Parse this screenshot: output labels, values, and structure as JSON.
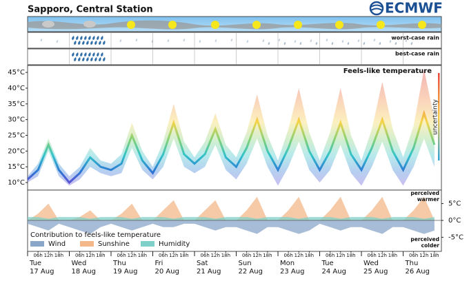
{
  "header": {
    "title": "Sapporo, Central Station",
    "logo": "ECMWF"
  },
  "rain": {
    "worst_label": "worst-case rain",
    "best_label": "best-case rain"
  },
  "chart_data": [
    {
      "type": "band",
      "title": "Feels-like temperature",
      "uncertainty_label": "uncertainty",
      "x": [
        0,
        6,
        12,
        18,
        24,
        30,
        36,
        42,
        48,
        54,
        60,
        66,
        72,
        78,
        84,
        90,
        96,
        102,
        108,
        114,
        120,
        126,
        132,
        138,
        144,
        150,
        156,
        162,
        168,
        174,
        180,
        186,
        192,
        198,
        204,
        210,
        216,
        222,
        228,
        234
      ],
      "xlim": [
        0,
        238
      ],
      "xticks": [
        0,
        24,
        48,
        72,
        96,
        120,
        144,
        168,
        192,
        216
      ],
      "days": [
        {
          "weekday": "Tue",
          "date": "17 Aug"
        },
        {
          "weekday": "Wed",
          "date": "18 Aug"
        },
        {
          "weekday": "Thu",
          "date": "19 Aug"
        },
        {
          "weekday": "Fri",
          "date": "20 Aug"
        },
        {
          "weekday": "Sat",
          "date": "21 Aug"
        },
        {
          "weekday": "Sun",
          "date": "22 Aug"
        },
        {
          "weekday": "Mon",
          "date": "23 Aug"
        },
        {
          "weekday": "Tue",
          "date": "24 Aug"
        },
        {
          "weekday": "Wed",
          "date": "25 Aug"
        },
        {
          "weekday": "Thu",
          "date": "26 Aug"
        }
      ],
      "hour_labels": [
        "06h",
        "12h",
        "18h"
      ],
      "median": [
        11,
        14,
        22,
        14,
        10,
        13,
        18,
        15,
        14,
        16,
        25,
        17,
        13,
        19,
        29,
        19,
        16,
        19,
        27,
        18,
        15,
        21,
        30,
        20,
        14,
        21,
        30,
        20,
        14,
        20,
        29,
        19,
        14,
        21,
        30,
        20,
        14,
        21,
        32,
        22
      ],
      "upper": [
        12,
        16,
        24,
        16,
        12,
        15,
        21,
        17,
        16,
        19,
        29,
        20,
        15,
        23,
        35,
        23,
        18,
        23,
        32,
        22,
        18,
        26,
        38,
        25,
        17,
        27,
        40,
        26,
        17,
        26,
        40,
        25,
        17,
        27,
        42,
        27,
        18,
        28,
        46,
        30
      ],
      "lower": [
        10,
        12,
        20,
        12,
        9,
        11,
        15,
        13,
        12,
        13,
        21,
        14,
        11,
        15,
        24,
        15,
        13,
        15,
        22,
        14,
        11,
        16,
        24,
        15,
        9,
        15,
        23,
        14,
        10,
        14,
        22,
        13,
        9,
        15,
        23,
        14,
        9,
        15,
        24,
        15
      ],
      "ylim": [
        7.6,
        47
      ],
      "yticks": [
        {
          "value": 10,
          "label": "10°C"
        },
        {
          "value": 15,
          "label": "15°C"
        },
        {
          "value": 20,
          "label": "20°C"
        },
        {
          "value": 25,
          "label": "25°C"
        },
        {
          "value": 30,
          "label": "30°C"
        },
        {
          "value": 35,
          "label": "35°C"
        },
        {
          "value": 40,
          "label": "40°C"
        },
        {
          "value": 45,
          "label": "45°C"
        }
      ]
    },
    {
      "type": "area",
      "title": "Contribution to feels-like temperature",
      "warmer_label": [
        "perceived",
        "warmer"
      ],
      "colder_label": [
        "perceived",
        "colder"
      ],
      "ylim": [
        -9.2,
        8.8
      ],
      "yticks": [
        {
          "value": 5,
          "label": "5°C"
        },
        {
          "value": 0,
          "label": "0°C"
        },
        {
          "value": -5,
          "label": "-5°C"
        }
      ],
      "series": [
        {
          "name": "Wind",
          "color": "#8aa6c8",
          "values": [
            -1,
            -2,
            -3,
            -1,
            -2,
            -3,
            -4,
            -2,
            -1,
            -2,
            -3,
            -2,
            -1,
            -2,
            -2,
            -1,
            -1,
            -2,
            -3,
            -2,
            -2,
            -3,
            -4,
            -2,
            -2,
            -3,
            -4,
            -3,
            -1,
            -2,
            -3,
            -2,
            -2,
            -3,
            -4,
            -2,
            -2,
            -3,
            -4,
            -3
          ]
        },
        {
          "name": "Sunshine",
          "color": "#f3b78a",
          "values": [
            0,
            2,
            5,
            0,
            0,
            1,
            3,
            0,
            0,
            2,
            5,
            0,
            0,
            3,
            6,
            0,
            0,
            3,
            6,
            0,
            0,
            3,
            7,
            0,
            0,
            3,
            7,
            0,
            0,
            3,
            7,
            0,
            0,
            3,
            7,
            0,
            0,
            3,
            7,
            0
          ]
        },
        {
          "name": "Humidity",
          "color": "#7fd0c8",
          "values": [
            1,
            1,
            0.5,
            1,
            1,
            1,
            0.5,
            1,
            1,
            1,
            0.5,
            1,
            1,
            1,
            0.5,
            1,
            1,
            1,
            0.5,
            1,
            1,
            1,
            0.5,
            1,
            1,
            1,
            0.5,
            1,
            1,
            1,
            0.5,
            1,
            1,
            1,
            0.5,
            1,
            1,
            1,
            0.5,
            1
          ]
        }
      ]
    }
  ]
}
